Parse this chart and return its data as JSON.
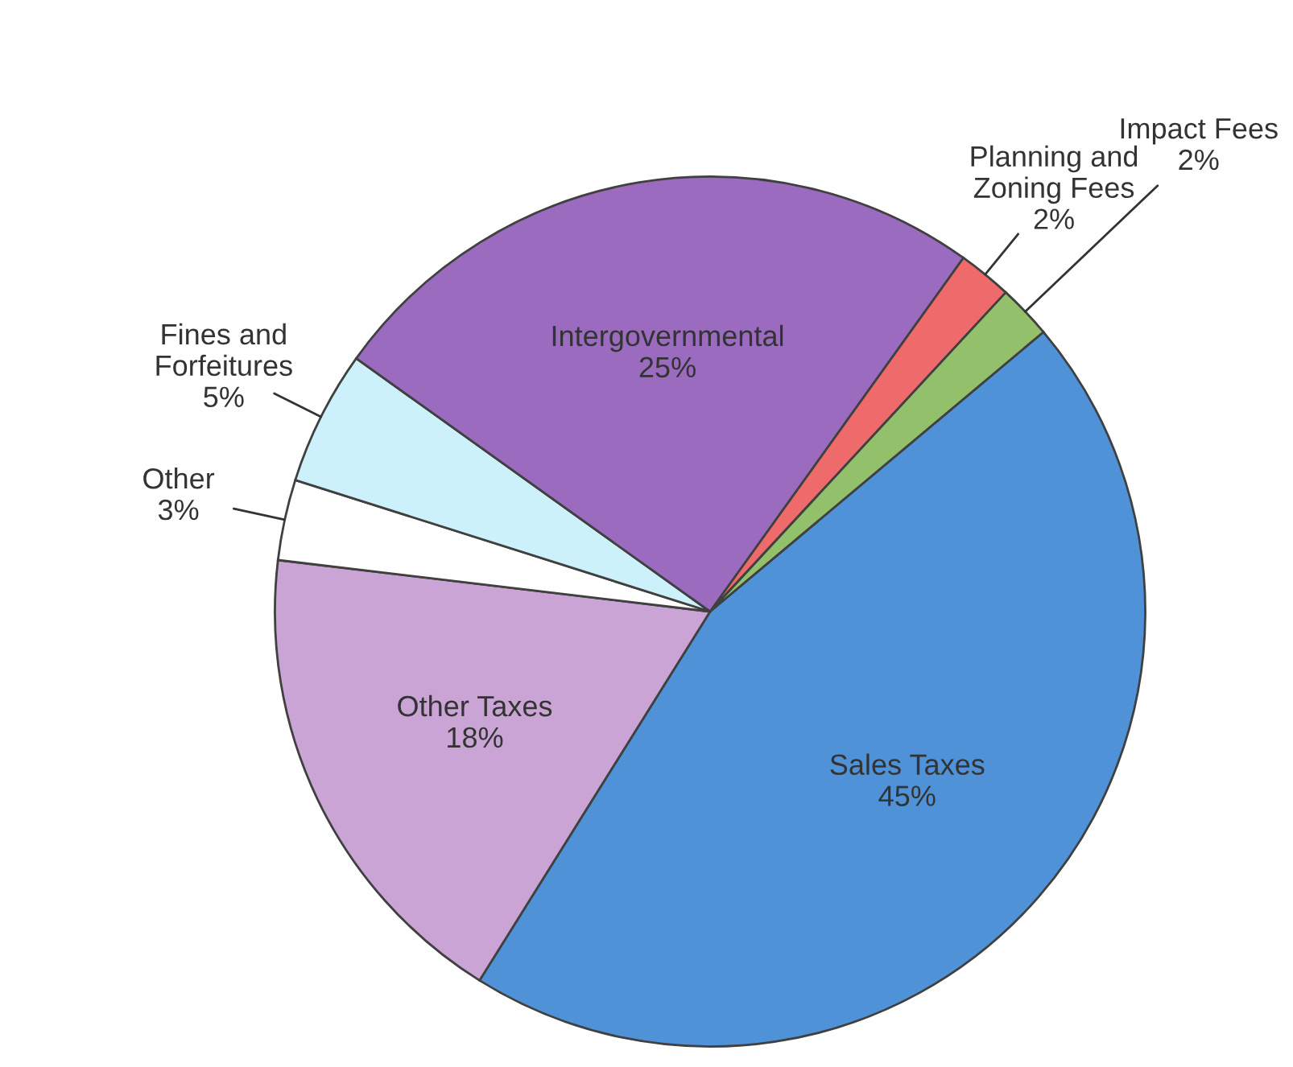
{
  "chart_data": {
    "type": "pie",
    "categories": [
      "Sales Taxes",
      "Other Taxes",
      "Other",
      "Fines and\nForfeitures",
      "Intergovernmental",
      "Planning and\nZoning Fees",
      "Impact Fees"
    ],
    "values": [
      45,
      18,
      3,
      5,
      25,
      2,
      2
    ],
    "colors": [
      "#4f92d8",
      "#c9a4d4",
      "#ffffff",
      "#cdf1fb",
      "#9b6bbf",
      "#ef6b6b",
      "#93c06a"
    ],
    "value_labels": [
      "45%",
      "18%",
      "3%",
      "5%",
      "25%",
      "2%",
      "2%"
    ]
  }
}
